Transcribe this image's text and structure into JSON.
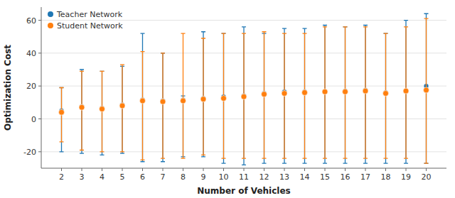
{
  "chart_data": {
    "type": "scatter",
    "x_label": "Number of Vehicles",
    "y_label": "Optimization Cost",
    "x": [
      2,
      3,
      4,
      5,
      6,
      7,
      8,
      9,
      10,
      11,
      12,
      13,
      14,
      15,
      16,
      17,
      18,
      19,
      20
    ],
    "xlim": [
      1,
      21
    ],
    "xticks": [
      2,
      3,
      4,
      5,
      6,
      7,
      8,
      9,
      10,
      11,
      12,
      13,
      14,
      15,
      16,
      17,
      18,
      19,
      20
    ],
    "ylim": [
      -30,
      68
    ],
    "yticks": [
      -20,
      0,
      20,
      40,
      60
    ],
    "grid": true,
    "legend": "upper left",
    "marker": "circle",
    "series": [
      {
        "name": "Teacher Network",
        "color": "#1f77b4",
        "values": [
          5.0,
          7.5,
          6.5,
          8.5,
          11.5,
          11.0,
          11.5,
          12.5,
          13.5,
          14.0,
          15.5,
          16.5,
          16.5,
          16.5,
          17.0,
          17.5,
          16.0,
          17.0,
          20.0
        ],
        "upper": [
          19.0,
          30.0,
          29.0,
          32.0,
          52.0,
          40.0,
          14.0,
          53.0,
          52.0,
          56.0,
          52.0,
          55.0,
          55.0,
          57.0,
          56.0,
          57.0,
          52.0,
          60.0,
          64.0
        ],
        "lower": [
          -20.0,
          -21.0,
          -22.0,
          -21.0,
          -26.0,
          -26.0,
          -23.0,
          -23.0,
          -27.0,
          -28.0,
          -27.0,
          -27.0,
          -27.0,
          -27.0,
          -27.0,
          -27.0,
          -27.0,
          -27.0,
          -27.0
        ]
      },
      {
        "name": "Student Network",
        "color": "#ff7f0e",
        "values": [
          4.0,
          7.0,
          6.0,
          8.0,
          11.0,
          10.5,
          11.0,
          12.0,
          12.5,
          13.5,
          15.0,
          15.5,
          16.0,
          16.5,
          16.5,
          17.0,
          15.5,
          17.0,
          17.5
        ],
        "upper": [
          19.0,
          29.0,
          29.0,
          33.0,
          41.0,
          40.0,
          52.0,
          49.0,
          52.0,
          52.0,
          53.0,
          52.0,
          52.0,
          56.0,
          56.0,
          56.0,
          52.0,
          56.0,
          61.0
        ],
        "lower": [
          -14.0,
          -19.0,
          -20.0,
          -20.0,
          -25.0,
          -24.0,
          -24.0,
          -22.0,
          -24.0,
          -24.0,
          -24.0,
          -24.0,
          -24.0,
          -24.0,
          -24.0,
          -24.0,
          -24.0,
          -24.0,
          -27.0
        ]
      }
    ]
  }
}
